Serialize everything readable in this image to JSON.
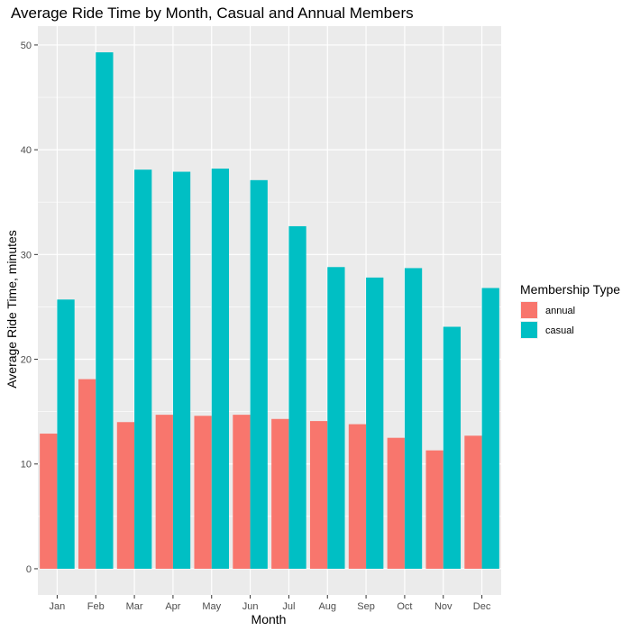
{
  "chart_data": {
    "type": "bar",
    "title": "Average Ride Time by Month, Casual and Annual Members",
    "xlabel": "Month",
    "ylabel": "Average Ride Time, minutes",
    "categories": [
      "Jan",
      "Feb",
      "Mar",
      "Apr",
      "May",
      "Jun",
      "Jul",
      "Aug",
      "Sep",
      "Oct",
      "Nov",
      "Dec"
    ],
    "series": [
      {
        "name": "annual",
        "color": "#F8766D",
        "values": [
          12.9,
          18.1,
          14.0,
          14.7,
          14.6,
          14.7,
          14.3,
          14.1,
          13.8,
          12.5,
          11.3,
          12.7
        ]
      },
      {
        "name": "casual",
        "color": "#00BFC4",
        "values": [
          25.7,
          49.3,
          38.1,
          37.9,
          38.2,
          37.1,
          32.7,
          28.8,
          27.8,
          28.7,
          23.1,
          26.8
        ]
      }
    ],
    "ylim": [
      -2.5,
      51.8
    ],
    "yticks": [
      0,
      10,
      20,
      30,
      40,
      50
    ],
    "grid": true,
    "legend": {
      "title": "Membership Type",
      "position": "right"
    }
  }
}
